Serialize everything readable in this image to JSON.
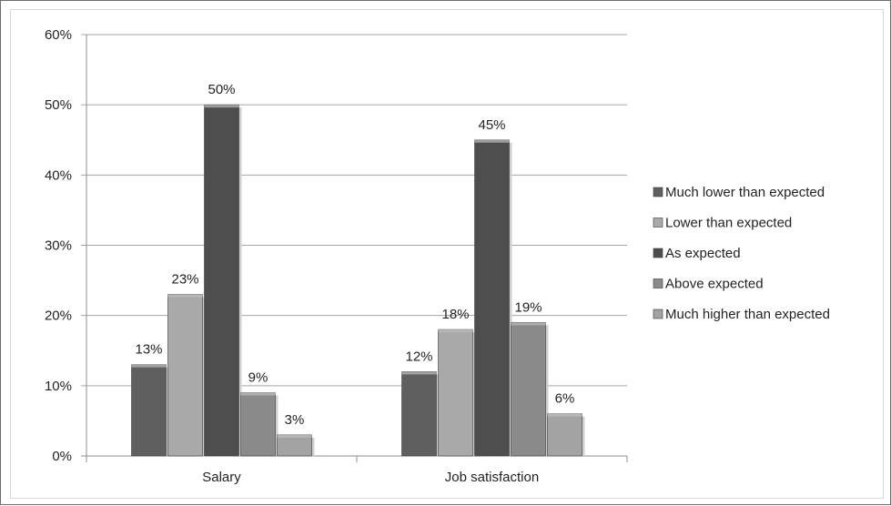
{
  "chart_data": {
    "type": "bar",
    "categories": [
      "Salary",
      "Job satisfaction"
    ],
    "series": [
      {
        "name": "Much lower than expected",
        "values": [
          13,
          12
        ],
        "color": "#5f5f5f"
      },
      {
        "name": "Lower than expected",
        "values": [
          23,
          18
        ],
        "color": "#a9a9a9"
      },
      {
        "name": "As expected",
        "values": [
          50,
          45
        ],
        "color": "#4e4e4e"
      },
      {
        "name": "Above expected",
        "values": [
          9,
          19
        ],
        "color": "#8a8a8a"
      },
      {
        "name": "Much higher than expected",
        "values": [
          3,
          6
        ],
        "color": "#a3a3a3"
      }
    ],
    "value_labels": [
      [
        "13%",
        "12%"
      ],
      [
        "23%",
        "18%"
      ],
      [
        "50%",
        "45%"
      ],
      [
        "9%",
        "19%"
      ],
      [
        "3%",
        "6%"
      ]
    ],
    "y_ticks": [
      "0%",
      "10%",
      "20%",
      "30%",
      "40%",
      "50%",
      "60%"
    ],
    "ylim": [
      0,
      60
    ],
    "grid": true,
    "legend_position": "right",
    "title": "",
    "xlabel": "",
    "ylabel": ""
  }
}
